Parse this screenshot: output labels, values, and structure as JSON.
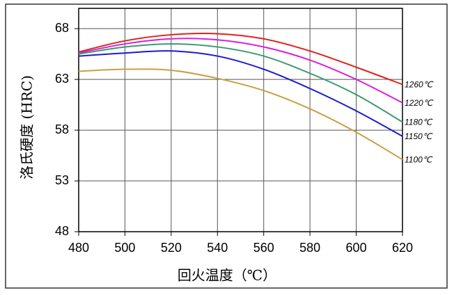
{
  "chart_data": {
    "type": "line",
    "x_label": "回火温度（℃）",
    "y_label": "洛氏硬度 (HRC)",
    "x": [
      480,
      500,
      520,
      540,
      560,
      580,
      600,
      620
    ],
    "xlim": [
      480,
      620
    ],
    "xticks": [
      480,
      500,
      520,
      540,
      560,
      580,
      600,
      620
    ],
    "ylim": [
      48,
      70
    ],
    "yticks": [
      48,
      53,
      58,
      63,
      68
    ],
    "grid": true,
    "series": [
      {
        "name": "1260℃",
        "color": "#e0201c",
        "values": [
          65.7,
          66.8,
          67.4,
          67.5,
          67.0,
          65.8,
          64.2,
          62.5
        ]
      },
      {
        "name": "1220℃",
        "color": "#d81fd8",
        "values": [
          65.6,
          66.5,
          67.0,
          66.9,
          66.2,
          64.9,
          63.0,
          60.7
        ]
      },
      {
        "name": "1180℃",
        "color": "#3a9a70",
        "values": [
          65.5,
          66.2,
          66.5,
          66.2,
          65.3,
          63.6,
          61.5,
          58.8
        ]
      },
      {
        "name": "1150℃",
        "color": "#1a1ad0",
        "values": [
          65.3,
          65.6,
          65.8,
          65.3,
          64.0,
          62.1,
          59.9,
          57.4
        ]
      },
      {
        "name": "1100℃",
        "color": "#c8a040",
        "values": [
          63.8,
          64.0,
          63.9,
          63.1,
          61.9,
          60.1,
          57.8,
          55.1
        ]
      }
    ]
  }
}
